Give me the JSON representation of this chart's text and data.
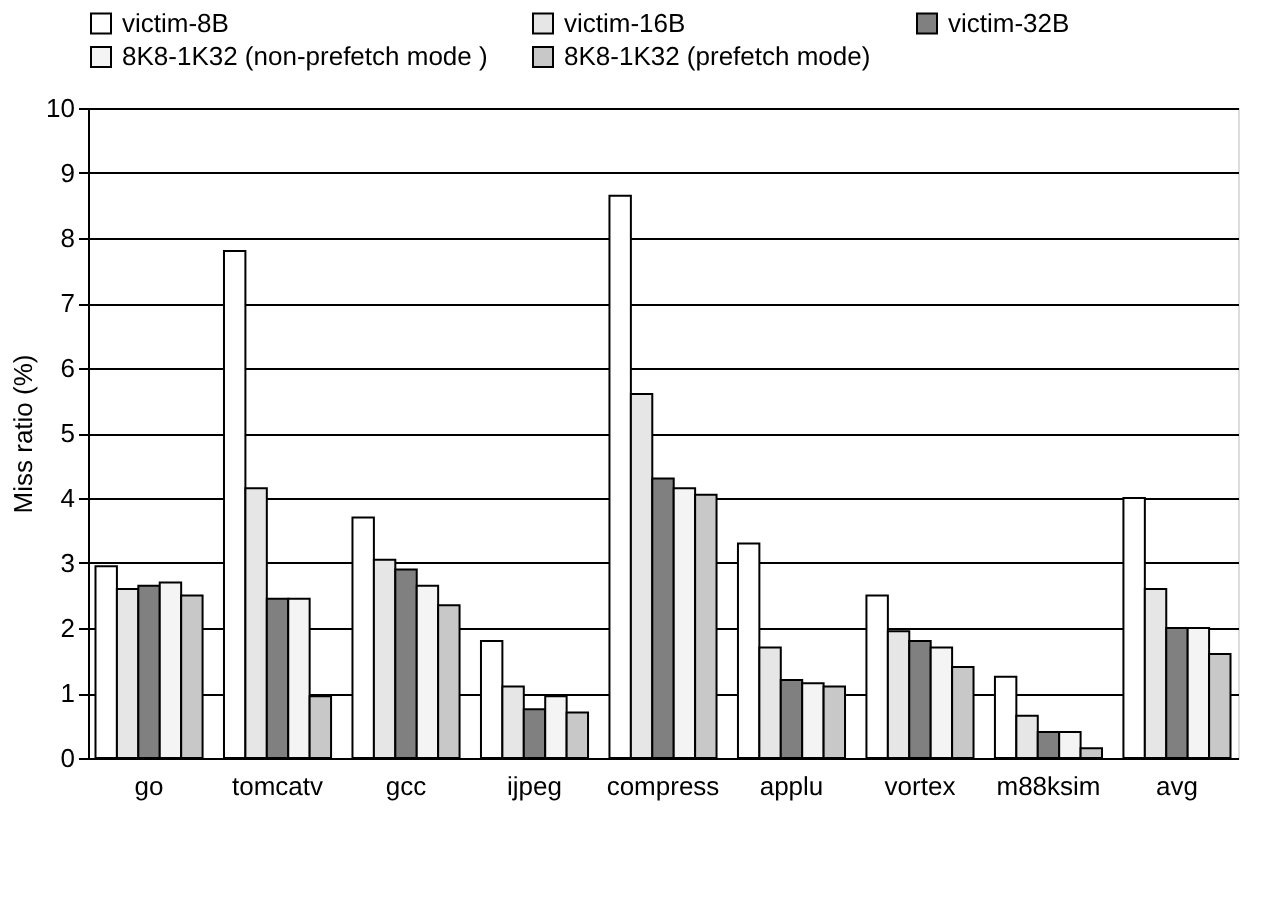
{
  "chart_data": {
    "type": "bar",
    "ylabel": "Miss ratio (%)",
    "categories": [
      "go",
      "tomcatv",
      "gcc",
      "ijpeg",
      "compress",
      "applu",
      "vortex",
      "m88ksim",
      "avg"
    ],
    "series": [
      {
        "name": "victim-8B",
        "color": "#ffffff",
        "values": [
          2.95,
          7.8,
          3.7,
          1.8,
          8.65,
          3.3,
          2.5,
          1.25,
          4.0
        ]
      },
      {
        "name": "victim-16B",
        "color": "#e6e6e6",
        "values": [
          2.6,
          4.15,
          3.05,
          1.1,
          5.6,
          1.7,
          1.95,
          0.65,
          2.6
        ]
      },
      {
        "name": "victim-32B",
        "color": "#808080",
        "values": [
          2.65,
          2.45,
          2.9,
          0.75,
          4.3,
          1.2,
          1.8,
          0.4,
          2.0
        ]
      },
      {
        "name": "8K8-1K32 (non-prefetch mode )",
        "color": "#f4f4f4",
        "values": [
          2.7,
          2.45,
          2.65,
          0.95,
          4.15,
          1.15,
          1.7,
          0.4,
          2.0
        ]
      },
      {
        "name": "8K8-1K32 (prefetch mode)",
        "color": "#c8c8c8",
        "values": [
          2.5,
          0.95,
          2.35,
          0.7,
          4.05,
          1.1,
          1.4,
          0.15,
          1.6
        ]
      }
    ],
    "ylim": [
      0,
      10
    ],
    "yticks": [
      0,
      1,
      2,
      3,
      4,
      5,
      6,
      7,
      8,
      9,
      10
    ],
    "grid": "y",
    "legend": "top"
  }
}
